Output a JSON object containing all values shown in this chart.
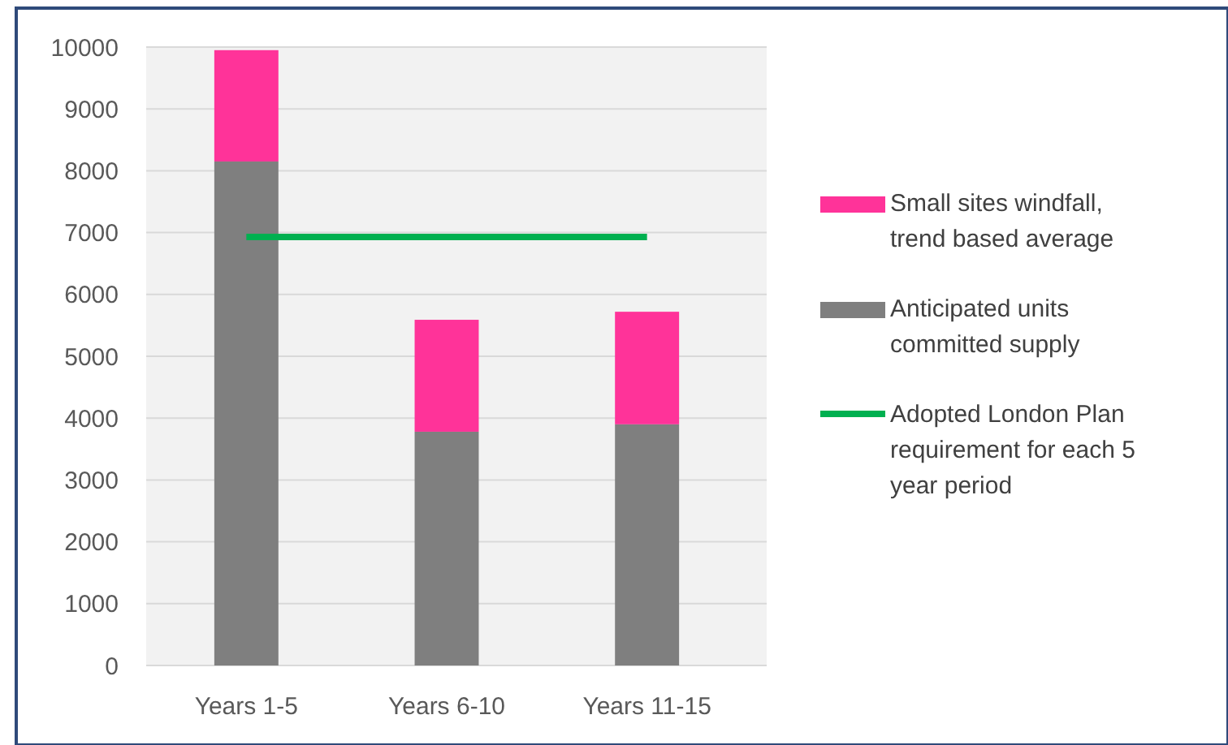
{
  "chart_data": {
    "type": "bar",
    "stacked": true,
    "categories": [
      "Years 1-5",
      "Years 6-10",
      "Years 11-15"
    ],
    "series": [
      {
        "name": "Anticipated units committed supply",
        "color": "#7f7f7f",
        "values": [
          8150,
          3780,
          3900
        ]
      },
      {
        "name": "Small sites windfall, trend based average",
        "color": "#ff3399",
        "values": [
          1800,
          1810,
          1820
        ]
      },
      {
        "name": "Adopted London Plan requirement for each 5 year period",
        "type": "line",
        "color": "#00b050",
        "values": [
          6930,
          6930,
          6930
        ]
      }
    ],
    "ylim": [
      0,
      10000
    ],
    "yticks": [
      0,
      1000,
      2000,
      3000,
      4000,
      5000,
      6000,
      7000,
      8000,
      9000,
      10000
    ],
    "grid": "y",
    "legend": "right"
  }
}
